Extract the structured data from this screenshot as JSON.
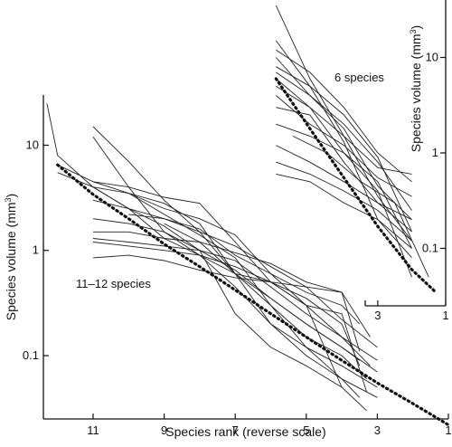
{
  "chart_data": [
    {
      "type": "line",
      "log_y": true,
      "reverse_x": true,
      "xlabel": "Species rank (reverse scale)",
      "ylabel": "Species volume (mm",
      "ylabel_sup": "3",
      "ylabel_tail": ")",
      "xlim": [
        12.4,
        1
      ],
      "ylim": [
        0.025,
        30
      ],
      "x_ticks": [
        11,
        9,
        7,
        5,
        3,
        1
      ],
      "y_ticks": [
        0.1,
        1,
        10
      ],
      "y_tick_labels": [
        "0.1",
        "1",
        "10"
      ],
      "annotation": "11–12 species",
      "fit": {
        "x": [
          12,
          11,
          10,
          9,
          8,
          7,
          6,
          5,
          4,
          3,
          2,
          1
        ],
        "y": [
          6.5,
          3.4,
          2.0,
          1.15,
          0.7,
          0.42,
          0.25,
          0.15,
          0.09,
          0.055,
          0.035,
          0.022
        ]
      },
      "series": [
        {
          "x": [
            12.3,
            12,
            11,
            10,
            9,
            8,
            7,
            6,
            5,
            4,
            3
          ],
          "y": [
            25,
            8,
            4,
            2.5,
            1.7,
            1.0,
            0.65,
            0.35,
            0.2,
            0.12,
            0.07
          ]
        },
        {
          "x": [
            12,
            11,
            10,
            9,
            8,
            7,
            6,
            5,
            4,
            3
          ],
          "y": [
            6.5,
            4.5,
            3.5,
            2.2,
            1.4,
            0.85,
            0.3,
            0.12,
            0.06,
            0.04
          ]
        },
        {
          "x": [
            12,
            11,
            10,
            9,
            8,
            7,
            6,
            5,
            4
          ],
          "y": [
            5.5,
            4.0,
            2.5,
            1.3,
            0.9,
            0.6,
            0.5,
            0.3,
            0.05
          ]
        },
        {
          "x": [
            11,
            10,
            9,
            8,
            7,
            6,
            5,
            4,
            3
          ],
          "y": [
            15,
            7,
            3.0,
            1.5,
            0.6,
            0.2,
            0.12,
            0.08,
            0.05
          ]
        },
        {
          "x": [
            11,
            10,
            9,
            8,
            7,
            6,
            5,
            4,
            3.5
          ],
          "y": [
            12,
            4,
            1.5,
            0.9,
            0.45,
            0.2,
            0.1,
            0.06,
            0.04
          ]
        },
        {
          "x": [
            11,
            10,
            9,
            8,
            7,
            6,
            5,
            4,
            3
          ],
          "y": [
            4.5,
            4.0,
            3.2,
            2.8,
            1.2,
            0.5,
            0.3,
            0.15,
            0.09
          ]
        },
        {
          "x": [
            11,
            10,
            9,
            8,
            7,
            6,
            5,
            4,
            3.3
          ],
          "y": [
            4.0,
            3.5,
            2.5,
            2.0,
            1.4,
            0.6,
            0.3,
            0.25,
            0.045
          ]
        },
        {
          "x": [
            11,
            10,
            9,
            8,
            7,
            6,
            5,
            4,
            3
          ],
          "y": [
            3.0,
            2.5,
            2.0,
            1.5,
            1.1,
            0.7,
            0.45,
            0.22,
            0.12
          ]
        },
        {
          "x": [
            11,
            10,
            9,
            8,
            7,
            6,
            5,
            4,
            3.5
          ],
          "y": [
            1.5,
            1.5,
            1.3,
            1.2,
            0.95,
            0.75,
            0.5,
            0.4,
            0.11
          ]
        },
        {
          "x": [
            11,
            10,
            9,
            8,
            7,
            6,
            5,
            4,
            3.2
          ],
          "y": [
            1.3,
            1.2,
            1.1,
            1.0,
            0.8,
            0.45,
            0.25,
            0.15,
            0.08
          ]
        },
        {
          "x": [
            11,
            10,
            9,
            8,
            7,
            6,
            5,
            4,
            3.5
          ],
          "y": [
            1.2,
            1.1,
            1.0,
            0.9,
            0.7,
            0.5,
            0.35,
            0.2,
            0.08
          ]
        },
        {
          "x": [
            11,
            10,
            9,
            8,
            7,
            6,
            5,
            4,
            3.2
          ],
          "y": [
            0.85,
            0.9,
            0.8,
            0.65,
            0.55,
            0.5,
            0.45,
            0.4,
            0.15
          ]
        },
        {
          "x": [
            11,
            10,
            9,
            8,
            7,
            6,
            5,
            4,
            3.3
          ],
          "y": [
            2.0,
            1.8,
            1.5,
            1.0,
            0.25,
            0.12,
            0.08,
            0.05,
            0.03
          ]
        },
        {
          "x": [
            10,
            9,
            8,
            7,
            6,
            5,
            4,
            3.3
          ],
          "y": [
            3.5,
            2.8,
            1.8,
            0.6,
            0.3,
            0.15,
            0.1,
            0.06
          ]
        },
        {
          "x": [
            10,
            9,
            8,
            7,
            6,
            5,
            4,
            3.5
          ],
          "y": [
            2.2,
            2.0,
            1.6,
            0.9,
            0.6,
            0.4,
            0.3,
            0.2
          ]
        },
        {
          "x": [
            9,
            8,
            7,
            6,
            5,
            4,
            3.5
          ],
          "y": [
            1.8,
            1.2,
            0.6,
            0.35,
            0.2,
            0.12,
            0.09
          ]
        }
      ]
    },
    {
      "type": "line",
      "log_y": true,
      "reverse_x": true,
      "ylabel": "Species volume (mm",
      "ylabel_sup": "3",
      "ylabel_tail": ")",
      "xlim": [
        6.3,
        1
      ],
      "ylim": [
        0.025,
        40
      ],
      "x_ticks": [
        3,
        1
      ],
      "y_ticks": [
        0.1,
        1,
        10
      ],
      "y_tick_labels": [
        "0.1",
        "1",
        "10"
      ],
      "annotation": "6 species",
      "fit": {
        "x": [
          6,
          5,
          4,
          3,
          2,
          1.3
        ],
        "y": [
          6.0,
          1.8,
          0.55,
          0.17,
          0.06,
          0.035
        ]
      },
      "series": [
        {
          "x": [
            6,
            5,
            4,
            3,
            2
          ],
          "y": [
            35,
            6,
            1.5,
            0.35,
            0.12
          ]
        },
        {
          "x": [
            6,
            5,
            4,
            3,
            2
          ],
          "y": [
            15,
            5,
            1.3,
            0.2,
            0.1
          ]
        },
        {
          "x": [
            6,
            5,
            4,
            3,
            2
          ],
          "y": [
            10,
            4,
            2.0,
            0.8,
            0.25
          ]
        },
        {
          "x": [
            6,
            5,
            4,
            3,
            2
          ],
          "y": [
            8,
            5,
            2.5,
            0.9,
            0.15
          ]
        },
        {
          "x": [
            6,
            5,
            4,
            3,
            2
          ],
          "y": [
            6,
            3,
            1.5,
            0.7,
            0.6
          ]
        },
        {
          "x": [
            6,
            5,
            4,
            3,
            2
          ],
          "y": [
            5,
            3,
            1.0,
            0.5,
            0.1
          ]
        },
        {
          "x": [
            6,
            5,
            4,
            3,
            2
          ],
          "y": [
            4,
            2,
            1.2,
            0.55,
            0.35
          ]
        },
        {
          "x": [
            6,
            5,
            4,
            3,
            2
          ],
          "y": [
            3,
            2.5,
            0.8,
            0.3,
            0.2
          ]
        },
        {
          "x": [
            6,
            5,
            4,
            3,
            2
          ],
          "y": [
            2,
            1.5,
            1.0,
            0.4,
            0.05
          ]
        },
        {
          "x": [
            6,
            5,
            4,
            3,
            2
          ],
          "y": [
            1.2,
            0.8,
            0.5,
            0.3,
            0.15
          ]
        },
        {
          "x": [
            6,
            5,
            4,
            3,
            2
          ],
          "y": [
            0.8,
            0.6,
            0.4,
            0.25,
            0.12
          ]
        },
        {
          "x": [
            6,
            5,
            4,
            3,
            2
          ],
          "y": [
            0.6,
            0.5,
            0.3,
            0.2,
            0.08
          ]
        },
        {
          "x": [
            6,
            5,
            4,
            3,
            2
          ],
          "y": [
            12,
            7,
            3.0,
            1.0,
            0.5
          ]
        },
        {
          "x": [
            6,
            5,
            4,
            3,
            2
          ],
          "y": [
            7,
            4,
            1.8,
            0.45,
            0.2
          ]
        },
        {
          "x": [
            5.5,
            4.5,
            3.5,
            2.5,
            1.5
          ],
          "y": [
            1.5,
            1.0,
            0.5,
            0.3,
            0.05
          ]
        }
      ]
    }
  ]
}
